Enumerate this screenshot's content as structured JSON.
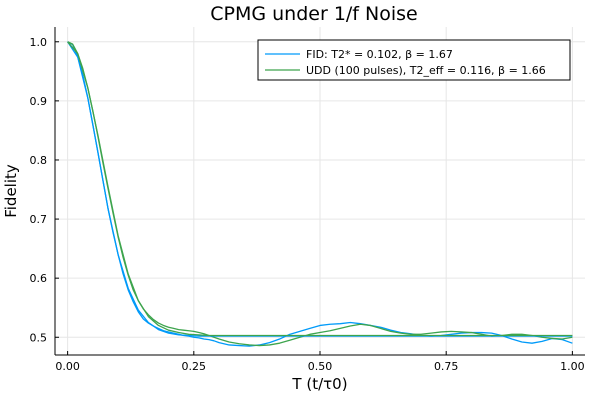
{
  "chart_data": {
    "type": "line",
    "title": "CPMG under 1/f Noise",
    "xlabel": "T (t/τ0)",
    "ylabel": "Fidelity",
    "xlim": [
      -0.025,
      1.025
    ],
    "ylim": [
      0.47,
      1.025
    ],
    "x_ticks": [
      0.0,
      0.25,
      0.5,
      0.75,
      1.0
    ],
    "x_tick_labels": [
      "0.00",
      "0.25",
      "0.50",
      "0.75",
      "1.00"
    ],
    "y_ticks": [
      0.5,
      0.6,
      0.7,
      0.8,
      0.9,
      1.0
    ],
    "y_tick_labels": [
      "0.5",
      "0.6",
      "0.7",
      "0.8",
      "0.9",
      "1.0"
    ],
    "grid": true,
    "legend_position": "top-right",
    "series": [
      {
        "name": "FID: T2* = 0.102, β = 1.67",
        "color": "#009af9",
        "style": "noisy",
        "x": [
          0.0,
          0.01,
          0.02,
          0.03,
          0.04,
          0.05,
          0.06,
          0.07,
          0.08,
          0.09,
          0.1,
          0.11,
          0.12,
          0.13,
          0.14,
          0.15,
          0.16,
          0.17,
          0.18,
          0.19,
          0.2,
          0.21,
          0.22,
          0.23,
          0.24,
          0.25,
          0.26,
          0.27,
          0.28,
          0.29,
          0.3,
          0.32,
          0.34,
          0.36,
          0.38,
          0.4,
          0.42,
          0.44,
          0.46,
          0.48,
          0.5,
          0.52,
          0.54,
          0.56,
          0.58,
          0.6,
          0.62,
          0.64,
          0.66,
          0.68,
          0.7,
          0.72,
          0.74,
          0.76,
          0.78,
          0.8,
          0.82,
          0.84,
          0.86,
          0.88,
          0.9,
          0.92,
          0.94,
          0.96,
          0.98,
          1.0
        ],
        "values": [
          1.0,
          0.995,
          0.975,
          0.944,
          0.905,
          0.86,
          0.813,
          0.765,
          0.718,
          0.677,
          0.64,
          0.607,
          0.58,
          0.56,
          0.543,
          0.531,
          0.524,
          0.519,
          0.515,
          0.511,
          0.509,
          0.507,
          0.505,
          0.503,
          0.502,
          0.5,
          0.499,
          0.497,
          0.496,
          0.494,
          0.491,
          0.487,
          0.486,
          0.485,
          0.487,
          0.491,
          0.497,
          0.505,
          0.51,
          0.515,
          0.52,
          0.522,
          0.523,
          0.525,
          0.523,
          0.52,
          0.517,
          0.512,
          0.508,
          0.506,
          0.503,
          0.502,
          0.503,
          0.505,
          0.507,
          0.508,
          0.508,
          0.507,
          0.503,
          0.497,
          0.492,
          0.49,
          0.493,
          0.498,
          0.496,
          0.49
        ]
      },
      {
        "name": "UDD (100 pulses), T2_eff = 0.116, β = 1.66",
        "color": "#3da44d",
        "style": "noisy",
        "x": [
          0.0,
          0.01,
          0.02,
          0.03,
          0.04,
          0.05,
          0.06,
          0.07,
          0.08,
          0.09,
          0.1,
          0.11,
          0.12,
          0.13,
          0.14,
          0.15,
          0.16,
          0.17,
          0.18,
          0.19,
          0.2,
          0.21,
          0.22,
          0.23,
          0.24,
          0.25,
          0.26,
          0.27,
          0.28,
          0.29,
          0.3,
          0.32,
          0.34,
          0.36,
          0.38,
          0.4,
          0.42,
          0.44,
          0.46,
          0.48,
          0.5,
          0.52,
          0.54,
          0.56,
          0.58,
          0.6,
          0.62,
          0.64,
          0.66,
          0.68,
          0.7,
          0.72,
          0.74,
          0.76,
          0.78,
          0.8,
          0.82,
          0.84,
          0.86,
          0.88,
          0.9,
          0.92,
          0.94,
          0.96,
          0.98,
          1.0
        ],
        "values": [
          1.0,
          0.996,
          0.98,
          0.955,
          0.922,
          0.883,
          0.84,
          0.795,
          0.752,
          0.71,
          0.67,
          0.635,
          0.605,
          0.58,
          0.562,
          0.548,
          0.538,
          0.53,
          0.524,
          0.52,
          0.517,
          0.515,
          0.513,
          0.512,
          0.511,
          0.51,
          0.508,
          0.506,
          0.503,
          0.5,
          0.497,
          0.492,
          0.489,
          0.487,
          0.486,
          0.487,
          0.49,
          0.495,
          0.5,
          0.505,
          0.508,
          0.511,
          0.515,
          0.519,
          0.522,
          0.52,
          0.515,
          0.51,
          0.507,
          0.505,
          0.505,
          0.507,
          0.509,
          0.51,
          0.509,
          0.508,
          0.505,
          0.502,
          0.503,
          0.505,
          0.505,
          0.503,
          0.5,
          0.498,
          0.497,
          0.5
        ]
      },
      {
        "name": "",
        "color": "#009af9",
        "style": "smooth",
        "x": [
          0.0,
          0.02,
          0.04,
          0.06,
          0.08,
          0.1,
          0.12,
          0.14,
          0.16,
          0.18,
          0.2,
          0.22,
          0.24,
          0.26,
          0.28,
          0.3,
          0.35,
          0.4,
          0.5,
          0.6,
          0.7,
          0.8,
          0.9,
          1.0
        ],
        "values": [
          1.0,
          0.974,
          0.905,
          0.813,
          0.718,
          0.64,
          0.583,
          0.546,
          0.525,
          0.513,
          0.507,
          0.504,
          0.503,
          0.502,
          0.502,
          0.502,
          0.502,
          0.502,
          0.502,
          0.502,
          0.502,
          0.502,
          0.502,
          0.502
        ]
      },
      {
        "name": "",
        "color": "#3da44d",
        "style": "smooth",
        "x": [
          0.0,
          0.02,
          0.04,
          0.06,
          0.08,
          0.1,
          0.12,
          0.14,
          0.16,
          0.18,
          0.2,
          0.22,
          0.24,
          0.26,
          0.28,
          0.3,
          0.35,
          0.4,
          0.5,
          0.6,
          0.7,
          0.8,
          0.9,
          1.0
        ],
        "values": [
          1.0,
          0.98,
          0.922,
          0.842,
          0.755,
          0.672,
          0.607,
          0.562,
          0.535,
          0.52,
          0.512,
          0.508,
          0.505,
          0.504,
          0.503,
          0.503,
          0.503,
          0.503,
          0.503,
          0.503,
          0.503,
          0.503,
          0.503,
          0.503
        ]
      }
    ]
  }
}
